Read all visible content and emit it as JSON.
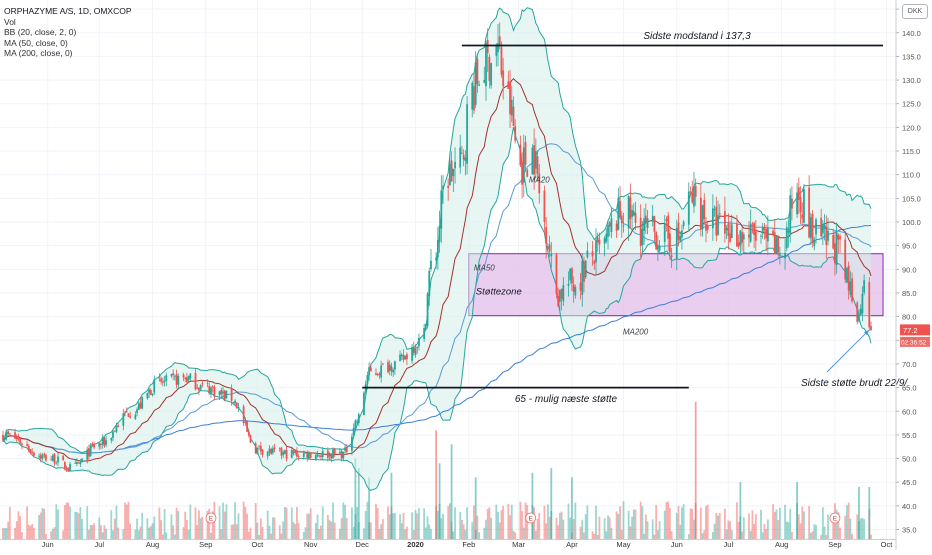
{
  "header": {
    "symbol_line": "ORPHAZYME A/S, 1D, OMXCOP",
    "indicators": [
      "Vol",
      "BB (20, close, 2, 0)",
      "MA (50, close, 0)",
      "MA (200, close, 0)"
    ],
    "currency": "DKK"
  },
  "colors": {
    "up": "#26a69a",
    "down": "#ef5350",
    "bb": "#26a69a",
    "bb_fill": "#d4efe9",
    "ma20": "#a5312c",
    "ma50": "#5b9bd5",
    "ma200": "#3b7dd8",
    "zone_fill": "#e3bdeb",
    "zone_stroke": "#8e24aa",
    "last_price_bg": "#ef5350"
  },
  "chart_data": {
    "type": "candlestick",
    "title": "ORPHAZYME A/S, 1D, OMXCOP",
    "y_axis": {
      "side": "right",
      "ylim": [
        33,
        146.5
      ],
      "ticks": [
        35,
        40,
        45,
        50,
        55,
        60,
        65,
        70,
        75,
        80,
        85,
        90,
        95,
        100,
        105,
        110,
        115,
        120,
        125,
        130,
        135,
        140,
        145
      ],
      "label_format": "0.0"
    },
    "x_axis": {
      "tick_labels": [
        "Jun",
        "Jul",
        "Aug",
        "Sep",
        "Oct",
        "Nov",
        "Dec",
        "2020",
        "Feb",
        "Mar",
        "Apr",
        "May",
        "Jun",
        "Jul",
        "Aug",
        "Sep",
        "Oct"
      ],
      "bold_label": "2020"
    },
    "last_price": {
      "value": "77.2",
      "countdown": "02:36:52"
    },
    "price_anchors": [
      {
        "date": "2019-05-06",
        "price": 55
      },
      {
        "date": "2019-06-03",
        "price": 50
      },
      {
        "date": "2019-06-15",
        "price": 48
      },
      {
        "date": "2019-07-01",
        "price": 53
      },
      {
        "date": "2019-07-20",
        "price": 60
      },
      {
        "date": "2019-08-05",
        "price": 66
      },
      {
        "date": "2019-08-20",
        "price": 67
      },
      {
        "date": "2019-09-01",
        "price": 65
      },
      {
        "date": "2019-09-15",
        "price": 63
      },
      {
        "date": "2019-10-01",
        "price": 52
      },
      {
        "date": "2019-10-15",
        "price": 51
      },
      {
        "date": "2019-11-01",
        "price": 51
      },
      {
        "date": "2019-11-20",
        "price": 51
      },
      {
        "date": "2019-11-28",
        "price": 58
      },
      {
        "date": "2019-12-05",
        "price": 68
      },
      {
        "date": "2019-12-20",
        "price": 70
      },
      {
        "date": "2020-01-05",
        "price": 75
      },
      {
        "date": "2020-01-10",
        "price": 90
      },
      {
        "date": "2020-01-20",
        "price": 110
      },
      {
        "date": "2020-01-27",
        "price": 112
      },
      {
        "date": "2020-02-03",
        "price": 128
      },
      {
        "date": "2020-02-10",
        "price": 133
      },
      {
        "date": "2020-02-17",
        "price": 137
      },
      {
        "date": "2020-02-24",
        "price": 125
      },
      {
        "date": "2020-03-02",
        "price": 112
      },
      {
        "date": "2020-03-09",
        "price": 115
      },
      {
        "date": "2020-03-16",
        "price": 100
      },
      {
        "date": "2020-03-23",
        "price": 85
      },
      {
        "date": "2020-04-01",
        "price": 87
      },
      {
        "date": "2020-04-15",
        "price": 93
      },
      {
        "date": "2020-05-01",
        "price": 102
      },
      {
        "date": "2020-05-15",
        "price": 98
      },
      {
        "date": "2020-06-01",
        "price": 96
      },
      {
        "date": "2020-06-10",
        "price": 105
      },
      {
        "date": "2020-06-20",
        "price": 100
      },
      {
        "date": "2020-07-01",
        "price": 98
      },
      {
        "date": "2020-07-15",
        "price": 97
      },
      {
        "date": "2020-08-01",
        "price": 94
      },
      {
        "date": "2020-08-10",
        "price": 107
      },
      {
        "date": "2020-08-20",
        "price": 97
      },
      {
        "date": "2020-09-01",
        "price": 95
      },
      {
        "date": "2020-09-10",
        "price": 86
      },
      {
        "date": "2020-09-15",
        "price": 80
      },
      {
        "date": "2020-09-18",
        "price": 90
      },
      {
        "date": "2020-09-22",
        "price": 77.2
      }
    ],
    "volume": {
      "typical_range": [
        34,
        41
      ],
      "spikes": [
        {
          "date": "2019-11-27",
          "value": 50
        },
        {
          "date": "2019-11-29",
          "value": 48
        },
        {
          "date": "2019-12-05",
          "value": 46
        },
        {
          "date": "2019-12-18",
          "value": 47
        },
        {
          "date": "2020-01-13",
          "value": 56
        },
        {
          "date": "2020-01-15",
          "value": 49
        },
        {
          "date": "2020-01-22",
          "value": 53
        },
        {
          "date": "2020-02-05",
          "value": 46
        },
        {
          "date": "2020-03-09",
          "value": 47
        },
        {
          "date": "2020-03-20",
          "value": 48
        },
        {
          "date": "2020-04-01",
          "value": 46
        },
        {
          "date": "2020-06-12",
          "value": 62
        },
        {
          "date": "2020-07-08",
          "value": 45
        },
        {
          "date": "2020-08-10",
          "value": 45
        },
        {
          "date": "2020-09-15",
          "value": 44
        },
        {
          "date": "2020-09-21",
          "value": 44
        }
      ]
    },
    "series": [
      {
        "name": "MA20",
        "color": "#a5312c"
      },
      {
        "name": "MA50",
        "color": "#5b9bd5"
      },
      {
        "name": "MA200",
        "color": "#3b7dd8"
      },
      {
        "name": "BB (20, close, 2, 0)",
        "color": "#26a69a"
      }
    ],
    "annotations": {
      "resistance": {
        "text": "Sidste modstand i 137,3",
        "value": 137.3,
        "from": "2020-01-28",
        "to": "2020-09-29"
      },
      "support_next": {
        "text": "65 - mulig næste støtte",
        "value": 65,
        "from": "2019-12-01",
        "to": "2020-06-08"
      },
      "support_zone": {
        "label": "Støttezone",
        "low": 80.2,
        "high": 93.3,
        "from": "2020-02-01",
        "to": "2020-09-29"
      },
      "break_note": {
        "text": "Sidste støtte brudt 22/9/",
        "arrow_to_date": "2020-09-22",
        "arrow_to_value": 78
      },
      "series_labels": [
        {
          "text": "MA20",
          "date": "2020-03-13",
          "value": 108.3
        },
        {
          "text": "MA50",
          "date": "2020-02-10",
          "value": 89.8
        },
        {
          "text": "MA200",
          "date": "2020-05-08",
          "value": 76.2
        }
      ]
    },
    "events": [
      {
        "label": "E",
        "date": "2019-09-04"
      },
      {
        "label": "E",
        "date": "2020-03-08"
      },
      {
        "label": "E",
        "date": "2020-09-01"
      }
    ],
    "grid": true
  }
}
